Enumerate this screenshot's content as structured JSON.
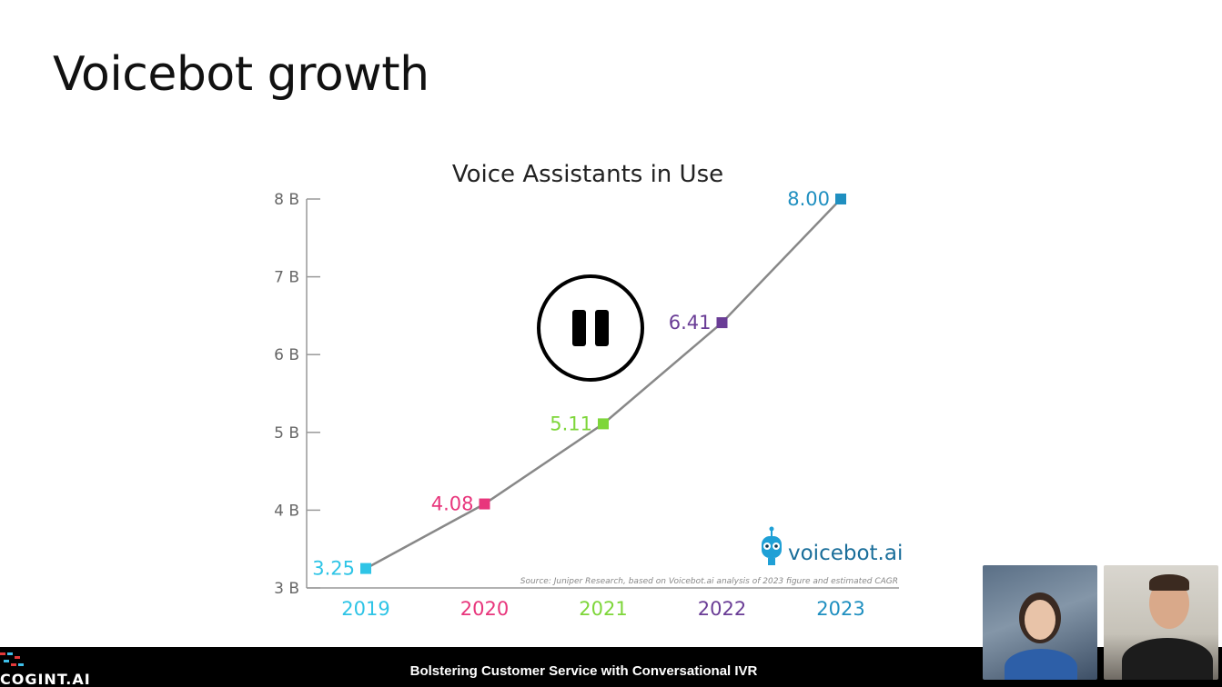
{
  "slide": {
    "title": "Voicebot growth"
  },
  "chart_data": {
    "type": "line",
    "title": "Voice Assistants in Use",
    "categories": [
      "2019",
      "2020",
      "2021",
      "2022",
      "2023"
    ],
    "values": [
      3.25,
      4.08,
      5.11,
      6.41,
      8.0
    ],
    "value_labels": [
      "3.25",
      "4.08",
      "5.11",
      "6.41",
      "8.00"
    ],
    "point_colors": [
      "#2ec4e6",
      "#e8367c",
      "#7ed63a",
      "#6a3d96",
      "#1f8fc0"
    ],
    "ylim": [
      3,
      8
    ],
    "yticks": [
      3,
      4,
      5,
      6,
      7,
      8
    ],
    "ytick_labels": [
      "3 B",
      "4 B",
      "5 B",
      "6 B",
      "7 B",
      "8 B"
    ],
    "line_color": "#888888",
    "grid": false,
    "source": "Source: Juniper Research, based on Voicebot.ai analysis of 2023 figure and estimated CAGR",
    "logo_text": "voicebot.ai"
  },
  "player": {
    "state": "playing",
    "pause_icon": "pause-icon"
  },
  "footer": {
    "title": "Bolstering Customer Service with Conversational IVR",
    "brand": "COGINT.AI"
  }
}
